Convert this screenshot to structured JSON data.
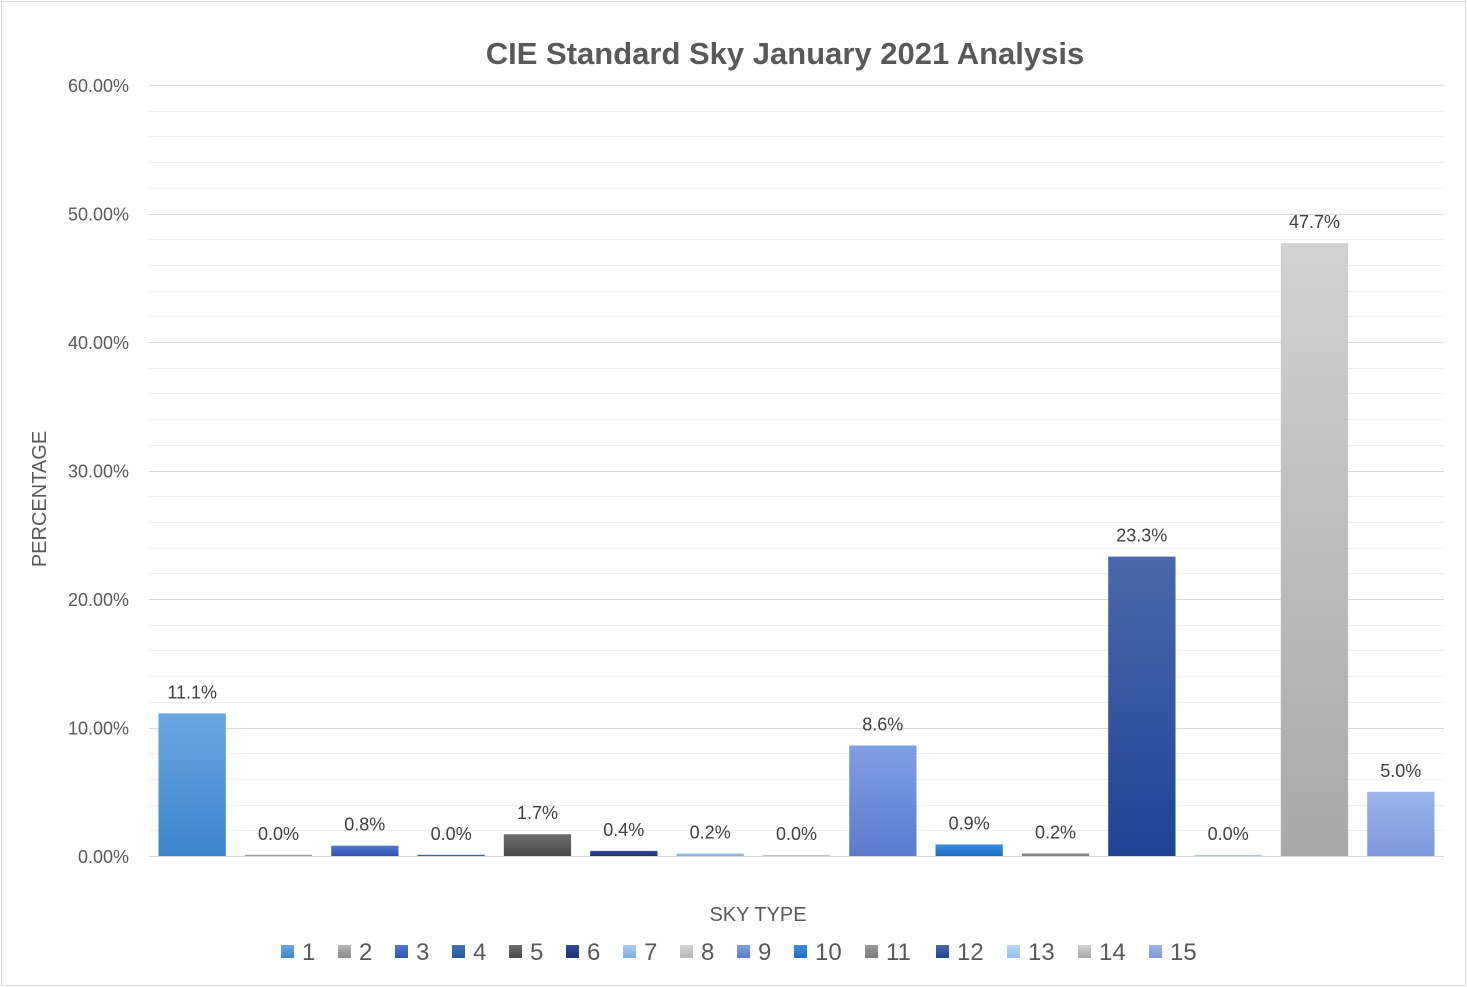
{
  "chart_data": {
    "type": "bar",
    "title": "CIE Standard Sky January 2021 Analysis",
    "xlabel": "SKY TYPE",
    "ylabel": "PERCENTAGE",
    "ylim": [
      0,
      60
    ],
    "yticks": [
      "0.00%",
      "10.00%",
      "20.00%",
      "30.00%",
      "40.00%",
      "50.00%",
      "60.00%"
    ],
    "grid": true,
    "minor_grid": true,
    "legend_position": "bottom",
    "categories": [
      "1",
      "2",
      "3",
      "4",
      "5",
      "6",
      "7",
      "8",
      "9",
      "10",
      "11",
      "12",
      "13",
      "14",
      "15"
    ],
    "values": [
      11.1,
      0.0,
      0.8,
      0.0,
      1.7,
      0.4,
      0.2,
      0.0,
      8.6,
      0.9,
      0.2,
      23.3,
      0.0,
      47.7,
      5.0
    ],
    "data_labels": [
      "11.1%",
      "0.0%",
      "0.8%",
      "0.0%",
      "1.7%",
      "0.4%",
      "0.2%",
      "0.0%",
      "8.6%",
      "0.9%",
      "0.2%",
      "23.3%",
      "0.0%",
      "47.7%",
      "5.0%"
    ],
    "colors": [
      [
        "#6aa6e0",
        "#3c85cc"
      ],
      [
        "#b4b4b4",
        "#8c8c8c"
      ],
      [
        "#5078d0",
        "#2e54b0"
      ],
      [
        "#3d74b8",
        "#245a9a"
      ],
      [
        "#6e6e6e",
        "#4a4a4a"
      ],
      [
        "#2e4a98",
        "#1c3374"
      ],
      [
        "#a6cdf0",
        "#7ab0e4"
      ],
      [
        "#d4d4d4",
        "#b6b6b6"
      ],
      [
        "#7f9ee4",
        "#5a7ccc"
      ],
      [
        "#3a8ee0",
        "#1d6ec4"
      ],
      [
        "#9a9a9a",
        "#7a7a7a"
      ],
      [
        "#4c68ac",
        "#1f4494"
      ],
      [
        "#b9d8f4",
        "#95c2ec"
      ],
      [
        "#d2d2d2",
        "#a8a8a8"
      ],
      [
        "#9db4ea",
        "#7d98dc"
      ]
    ]
  }
}
